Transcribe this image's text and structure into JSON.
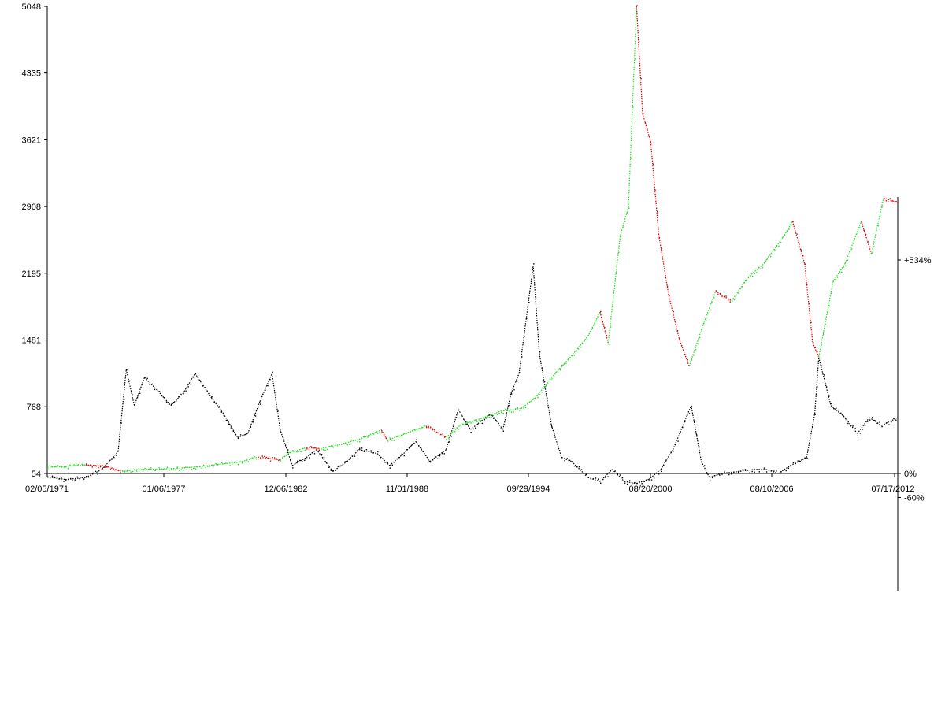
{
  "chart_data": {
    "type": "line",
    "title": "",
    "xlabel": "",
    "ylabel": "",
    "grid": false,
    "legend": "none",
    "x_ticks": [
      "02/05/1971",
      "01/06/1977",
      "12/06/1982",
      "11/01/1988",
      "09/29/1994",
      "08/20/2000",
      "08/10/2006",
      "07/17/2012"
    ],
    "x_range_years": [
      1971.1,
      2013.1
    ],
    "y_left": {
      "ticks": [
        "54",
        "768",
        "1481",
        "2195",
        "2908",
        "3621",
        "4335",
        "5048"
      ],
      "range": [
        54,
        5048
      ]
    },
    "y_right": {
      "tick_labels": [
        "+534%",
        "0%",
        "-60%"
      ],
      "tick_values": [
        534,
        0,
        -60
      ],
      "range": [
        -120,
        580
      ]
    },
    "colors": {
      "rising_segment": "#22dd22",
      "falling_segment": "#dd0000",
      "ratio_series": "#000000",
      "axis": "#000000"
    },
    "series": [
      {
        "axis": "left",
        "style": "dotted, green where rising / red where falling",
        "points": [
          [
            1971.1,
            120
          ],
          [
            1972.0,
            130
          ],
          [
            1973.0,
            145
          ],
          [
            1973.9,
            135
          ],
          [
            1974.8,
            75
          ],
          [
            1975.5,
            95
          ],
          [
            1976.5,
            100
          ],
          [
            1977.5,
            110
          ],
          [
            1978.5,
            125
          ],
          [
            1979.5,
            150
          ],
          [
            1980.6,
            175
          ],
          [
            1981.5,
            230
          ],
          [
            1982.6,
            200
          ],
          [
            1983.1,
            280
          ],
          [
            1983.9,
            330
          ],
          [
            1984.6,
            320
          ],
          [
            1985.5,
            360
          ],
          [
            1986.5,
            420
          ],
          [
            1987.6,
            520
          ],
          [
            1987.9,
            410
          ],
          [
            1988.8,
            480
          ],
          [
            1989.8,
            560
          ],
          [
            1990.8,
            440
          ],
          [
            1991.5,
            570
          ],
          [
            1992.5,
            640
          ],
          [
            1993.5,
            720
          ],
          [
            1994.5,
            750
          ],
          [
            1995.2,
            860
          ],
          [
            1996.0,
            1080
          ],
          [
            1996.9,
            1290
          ],
          [
            1997.8,
            1520
          ],
          [
            1998.4,
            1780
          ],
          [
            1998.8,
            1450
          ],
          [
            1999.4,
            2600
          ],
          [
            1999.8,
            2900
          ],
          [
            2000.2,
            5048
          ],
          [
            2000.5,
            3900
          ],
          [
            2000.9,
            3600
          ],
          [
            2001.3,
            2600
          ],
          [
            2001.8,
            1950
          ],
          [
            2002.3,
            1500
          ],
          [
            2002.8,
            1200
          ],
          [
            2003.5,
            1650
          ],
          [
            2004.1,
            2000
          ],
          [
            2004.9,
            1900
          ],
          [
            2005.7,
            2150
          ],
          [
            2006.5,
            2300
          ],
          [
            2007.5,
            2600
          ],
          [
            2007.9,
            2750
          ],
          [
            2008.5,
            2300
          ],
          [
            2008.9,
            1450
          ],
          [
            2009.2,
            1300
          ],
          [
            2009.9,
            2100
          ],
          [
            2010.5,
            2300
          ],
          [
            2011.3,
            2750
          ],
          [
            2011.8,
            2400
          ],
          [
            2012.4,
            3000
          ],
          [
            2013.1,
            2950
          ]
        ]
      },
      {
        "axis": "right",
        "style": "dotted, black",
        "points": [
          [
            1971.1,
            -8
          ],
          [
            1972.0,
            -15
          ],
          [
            1973.0,
            -10
          ],
          [
            1973.8,
            10
          ],
          [
            1974.6,
            55
          ],
          [
            1975.0,
            260
          ],
          [
            1975.4,
            170
          ],
          [
            1975.9,
            240
          ],
          [
            1976.5,
            210
          ],
          [
            1977.2,
            170
          ],
          [
            1977.8,
            200
          ],
          [
            1978.4,
            250
          ],
          [
            1979.2,
            190
          ],
          [
            1979.8,
            150
          ],
          [
            1980.5,
            90
          ],
          [
            1981.0,
            100
          ],
          [
            1981.6,
            180
          ],
          [
            1982.2,
            250
          ],
          [
            1982.6,
            110
          ],
          [
            1983.2,
            20
          ],
          [
            1983.9,
            40
          ],
          [
            1984.4,
            60
          ],
          [
            1985.2,
            5
          ],
          [
            1985.9,
            30
          ],
          [
            1986.5,
            60
          ],
          [
            1987.4,
            50
          ],
          [
            1988.0,
            20
          ],
          [
            1988.7,
            50
          ],
          [
            1989.3,
            80
          ],
          [
            1990.0,
            30
          ],
          [
            1990.8,
            60
          ],
          [
            1991.4,
            160
          ],
          [
            1992.0,
            110
          ],
          [
            1993.0,
            150
          ],
          [
            1993.6,
            110
          ],
          [
            1994.0,
            200
          ],
          [
            1994.4,
            250
          ],
          [
            1995.1,
            520
          ],
          [
            1995.4,
            300
          ],
          [
            1996.0,
            120
          ],
          [
            1996.5,
            40
          ],
          [
            1997.0,
            30
          ],
          [
            1997.8,
            -10
          ],
          [
            1998.4,
            -20
          ],
          [
            1999.0,
            10
          ],
          [
            1999.6,
            -20
          ],
          [
            2000.2,
            -25
          ],
          [
            2000.8,
            -15
          ],
          [
            2001.4,
            10
          ],
          [
            2002.0,
            60
          ],
          [
            2002.9,
            170
          ],
          [
            2003.4,
            30
          ],
          [
            2003.8,
            -10
          ],
          [
            2004.4,
            0
          ],
          [
            2005.2,
            5
          ],
          [
            2006.0,
            10
          ],
          [
            2006.6,
            10
          ],
          [
            2007.2,
            0
          ],
          [
            2007.8,
            20
          ],
          [
            2008.6,
            40
          ],
          [
            2009.0,
            150
          ],
          [
            2009.2,
            290
          ],
          [
            2009.8,
            170
          ],
          [
            2010.5,
            140
          ],
          [
            2011.1,
            100
          ],
          [
            2011.7,
            140
          ],
          [
            2012.3,
            120
          ],
          [
            2013.1,
            140
          ]
        ]
      }
    ]
  }
}
